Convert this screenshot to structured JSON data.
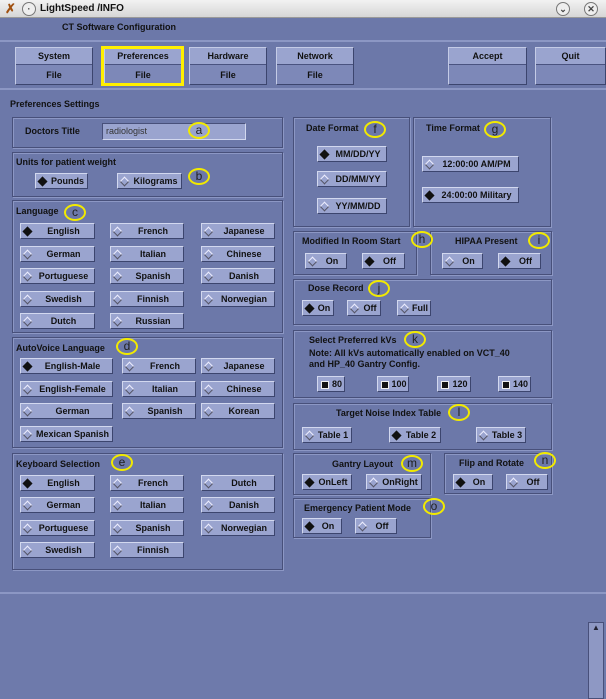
{
  "window": {
    "title": "LightSpeed /INFO",
    "minimize": "⌄",
    "close": "✕"
  },
  "header": {
    "title": "CT Software Configuration"
  },
  "toolbar": [
    {
      "top": "System",
      "bottom": "File"
    },
    {
      "top": "Preferences",
      "bottom": "File",
      "active": true
    },
    {
      "top": "Hardware",
      "bottom": "File"
    },
    {
      "top": "Network",
      "bottom": "File"
    },
    {
      "top": "Accept",
      "bottom": ""
    },
    {
      "top": "Quit",
      "bottom": ""
    }
  ],
  "section_title": "Preferences Settings",
  "doctors_title": {
    "label": "Doctors Title",
    "value": "radiologist"
  },
  "groups": [
    {
      "id": "units",
      "label": "Units for patient weight",
      "options": [
        {
          "label": "Pounds",
          "selected": true
        },
        {
          "label": "Kilograms"
        }
      ]
    },
    {
      "id": "language",
      "label": "Language",
      "options": [
        {
          "label": "English",
          "selected": true
        },
        {
          "label": "French"
        },
        {
          "label": "Japanese"
        },
        {
          "label": "German"
        },
        {
          "label": "Italian"
        },
        {
          "label": "Chinese"
        },
        {
          "label": "Portuguese"
        },
        {
          "label": "Spanish"
        },
        {
          "label": "Danish"
        },
        {
          "label": "Swedish"
        },
        {
          "label": "Finnish"
        },
        {
          "label": "Norwegian"
        },
        {
          "label": "Dutch"
        },
        {
          "label": "Russian"
        }
      ]
    },
    {
      "id": "autovoice",
      "label": "AutoVoice Language",
      "options": [
        {
          "label": "English-Male",
          "selected": true
        },
        {
          "label": "French"
        },
        {
          "label": "Japanese"
        },
        {
          "label": "English-Female"
        },
        {
          "label": "Italian"
        },
        {
          "label": "Chinese"
        },
        {
          "label": "German"
        },
        {
          "label": "Spanish"
        },
        {
          "label": "Korean"
        },
        {
          "label": "Mexican Spanish"
        }
      ]
    },
    {
      "id": "keyboard",
      "label": "Keyboard Selection",
      "options": [
        {
          "label": "English",
          "selected": true
        },
        {
          "label": "French"
        },
        {
          "label": "Dutch"
        },
        {
          "label": "German"
        },
        {
          "label": "Italian"
        },
        {
          "label": "Danish"
        },
        {
          "label": "Portuguese"
        },
        {
          "label": "Spanish"
        },
        {
          "label": "Norwegian"
        },
        {
          "label": "Swedish"
        },
        {
          "label": "Finnish"
        }
      ]
    },
    {
      "id": "date",
      "label": "Date Format",
      "options": [
        {
          "label": "MM/DD/YY",
          "selected": true
        },
        {
          "label": "DD/MM/YY"
        },
        {
          "label": "YY/MM/DD"
        }
      ]
    },
    {
      "id": "time",
      "label": "Time Format",
      "options": [
        {
          "label": "12:00:00 AM/PM"
        },
        {
          "label": "24:00:00 Military",
          "selected": true
        }
      ]
    },
    {
      "id": "inroom",
      "label": "Modified In Room Start",
      "options": [
        {
          "label": "On"
        },
        {
          "label": "Off",
          "selected": true
        }
      ]
    },
    {
      "id": "hipaa",
      "label": "HIPAA Present",
      "options": [
        {
          "label": "On"
        },
        {
          "label": "Off",
          "selected": true
        }
      ]
    },
    {
      "id": "dose",
      "label": "Dose Record",
      "options": [
        {
          "label": "On",
          "selected": true
        },
        {
          "label": "Off"
        },
        {
          "label": "Full"
        }
      ]
    },
    {
      "id": "kv",
      "label": "Select Preferred kVs",
      "note": [
        "Note: All kVs automatically enabled on VCT_40",
        "and HP_40 Gantry Config."
      ],
      "checkbox": true,
      "options": [
        {
          "label": "80",
          "selected": true
        },
        {
          "label": "100",
          "selected": true
        },
        {
          "label": "120",
          "selected": true
        },
        {
          "label": "140",
          "selected": true
        }
      ]
    },
    {
      "id": "noise",
      "label": "Target Noise Index Table",
      "options": [
        {
          "label": "Table 1"
        },
        {
          "label": "Table 2",
          "selected": true
        },
        {
          "label": "Table 3"
        }
      ]
    },
    {
      "id": "gantry",
      "label": "Gantry Layout",
      "options": [
        {
          "label": "OnLeft",
          "selected": true
        },
        {
          "label": "OnRight"
        }
      ]
    },
    {
      "id": "flip",
      "label": "Flip and Rotate",
      "options": [
        {
          "label": "On",
          "selected": true
        },
        {
          "label": "Off"
        }
      ]
    },
    {
      "id": "emergency",
      "label": "Emergency Patient Mode",
      "options": [
        {
          "label": "On",
          "selected": true
        },
        {
          "label": "Off"
        }
      ]
    }
  ],
  "annotations": [
    "a",
    "b",
    "c",
    "d",
    "e",
    "f",
    "g",
    "h",
    "i",
    "j",
    "k",
    "l",
    "m",
    "n",
    "o"
  ],
  "colors": {
    "background": "#6c78a9",
    "button": "#9aa4cf",
    "highlight": "#ffef00"
  }
}
